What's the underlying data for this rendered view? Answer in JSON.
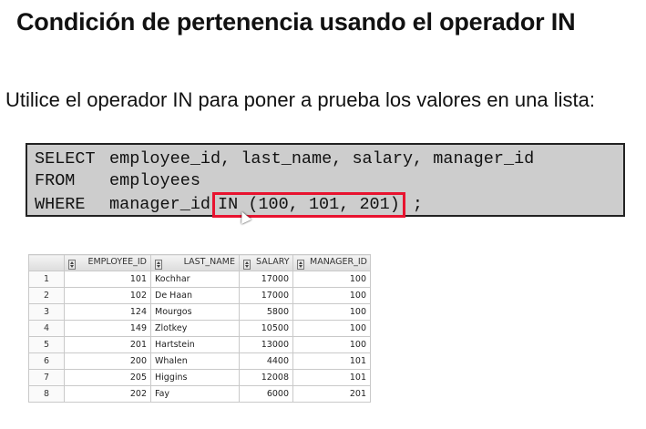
{
  "slide": {
    "title": "Condición de pertenencia usando el operador IN",
    "intro": "Utilice el operador IN para poner a prueba los valores en una lista:"
  },
  "sql": {
    "line1_keyword": "SELECT",
    "line1_rest": "employee_id, last_name, salary, manager_id",
    "line2_keyword": "FROM",
    "line2_rest": "employees",
    "line3_keyword": "WHERE",
    "line3_pre": "manager_id",
    "line3_highlight": "IN (100, 101, 201)",
    "line3_post": ";"
  },
  "results": {
    "columns": [
      "",
      "EMPLOYEE_ID",
      "LAST_NAME",
      "SALARY",
      "MANAGER_ID"
    ],
    "rows": [
      [
        "1",
        "101",
        "Kochhar",
        "17000",
        "100"
      ],
      [
        "2",
        "102",
        "De Haan",
        "17000",
        "100"
      ],
      [
        "3",
        "124",
        "Mourgos",
        "5800",
        "100"
      ],
      [
        "4",
        "149",
        "Zlotkey",
        "10500",
        "100"
      ],
      [
        "5",
        "201",
        "Hartstein",
        "13000",
        "100"
      ],
      [
        "6",
        "200",
        "Whalen",
        "4400",
        "101"
      ],
      [
        "7",
        "205",
        "Higgins",
        "12008",
        "101"
      ],
      [
        "8",
        "202",
        "Fay",
        "6000",
        "201"
      ]
    ]
  },
  "colors": {
    "highlight_border": "#e8132f",
    "code_background": "#cdcdcd"
  }
}
